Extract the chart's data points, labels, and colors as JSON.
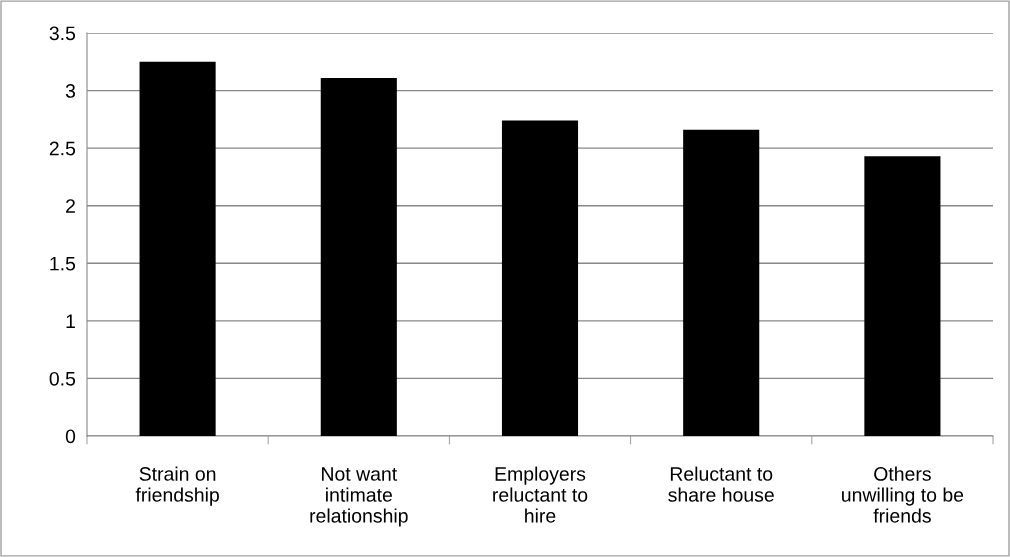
{
  "chart_data": {
    "type": "bar",
    "categories": [
      "Strain on\nfriendship",
      "Not want\nintimate\nrelationship",
      "Employers\nreluctant to\nhire",
      "Reluctant to\nshare house",
      "Others\nunwilling to be\nfriends"
    ],
    "values": [
      3.25,
      3.11,
      2.74,
      2.66,
      2.43
    ],
    "color": "#000000",
    "ylim": [
      0,
      3.5
    ],
    "yticks": [
      0,
      {
        "value": 0.5,
        "label": "0.5"
      },
      1,
      {
        "value": 1.5,
        "label": "1.5"
      },
      2,
      {
        "value": 2.5,
        "label": "2.5"
      },
      3,
      {
        "value": 3.5,
        "label": "3.5"
      }
    ],
    "grid": "y"
  }
}
